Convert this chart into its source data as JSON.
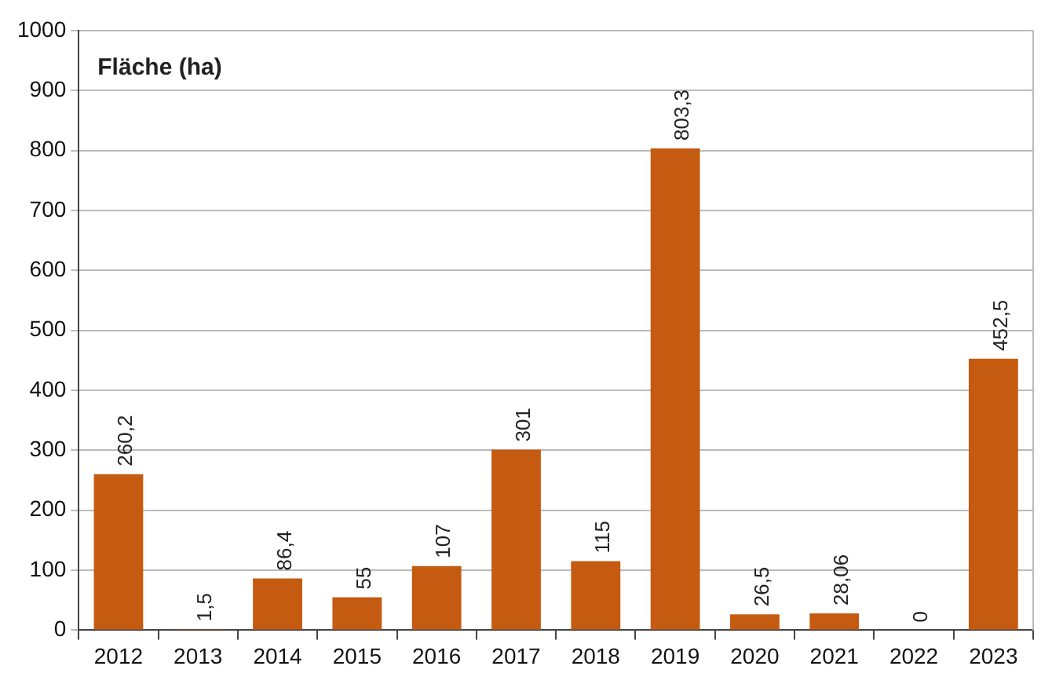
{
  "chart_data": {
    "type": "bar",
    "ylabel": "Fläche (ha)",
    "categories": [
      "2012",
      "2013",
      "2014",
      "2015",
      "2016",
      "2017",
      "2018",
      "2019",
      "2020",
      "2021",
      "2022",
      "2023"
    ],
    "values": [
      260.2,
      1.5,
      86.4,
      55,
      107,
      301,
      115,
      803.3,
      26.5,
      28.06,
      0,
      452.5
    ],
    "value_labels": [
      "260,2",
      "1,5",
      "86,4",
      "55",
      "107",
      "301",
      "115",
      "803,3",
      "26,5",
      "28,06",
      "0",
      "452,5"
    ],
    "color": "#c55a11",
    "ylim": [
      0,
      1000
    ],
    "yticks": [
      0,
      100,
      200,
      300,
      400,
      500,
      600,
      700,
      800,
      900,
      1000
    ],
    "grid": "y",
    "legend": false
  }
}
